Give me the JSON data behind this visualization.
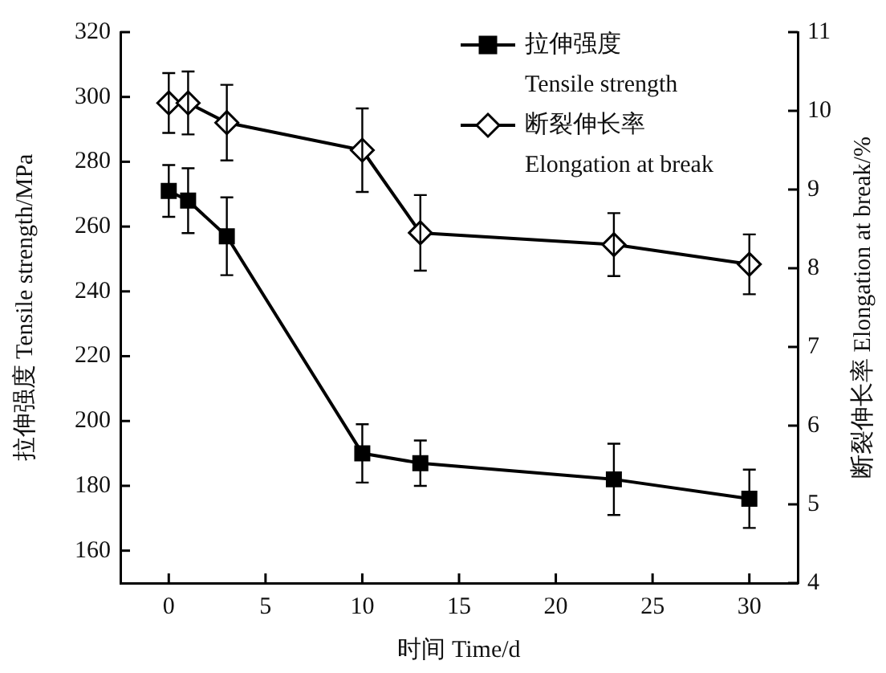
{
  "chart_data": {
    "type": "line",
    "xlabel": "时间 Time/d",
    "ylabel": "拉伸强度 Tensile strength/MPa",
    "y2label": "断裂伸长率 Elongation at break/%",
    "x": [
      0,
      1,
      3,
      10,
      13,
      23,
      30
    ],
    "series": [
      {
        "name": "拉伸强度\nTensile strength",
        "color": "#000000",
        "marker": "square",
        "values": [
          271,
          268,
          257,
          190,
          187,
          182,
          176
        ],
        "errors": [
          8,
          10,
          12,
          9,
          7,
          11,
          9
        ]
      },
      {
        "name": "断裂伸长率\nElongation at break",
        "color": "#000000",
        "marker": "diamond",
        "axis": "y2",
        "values": [
          10.1,
          10.1,
          9.85,
          9.5,
          8.45,
          8.3,
          8.05
        ],
        "errors": [
          0.38,
          0.4,
          0.48,
          0.53,
          0.48,
          0.4,
          0.38
        ]
      }
    ],
    "xlim": [
      -2.5,
      32.5
    ],
    "xticks": [
      0,
      5,
      10,
      15,
      20,
      25,
      30
    ],
    "ylim": [
      150,
      320
    ],
    "yticks": [
      160,
      180,
      200,
      220,
      240,
      260,
      280,
      300,
      320
    ],
    "y2lim": [
      4,
      11
    ],
    "y2ticks": [
      4,
      5,
      6,
      7,
      8,
      9,
      10,
      11
    ],
    "grid": false,
    "legend": "top right",
    "line_style": "solid"
  }
}
